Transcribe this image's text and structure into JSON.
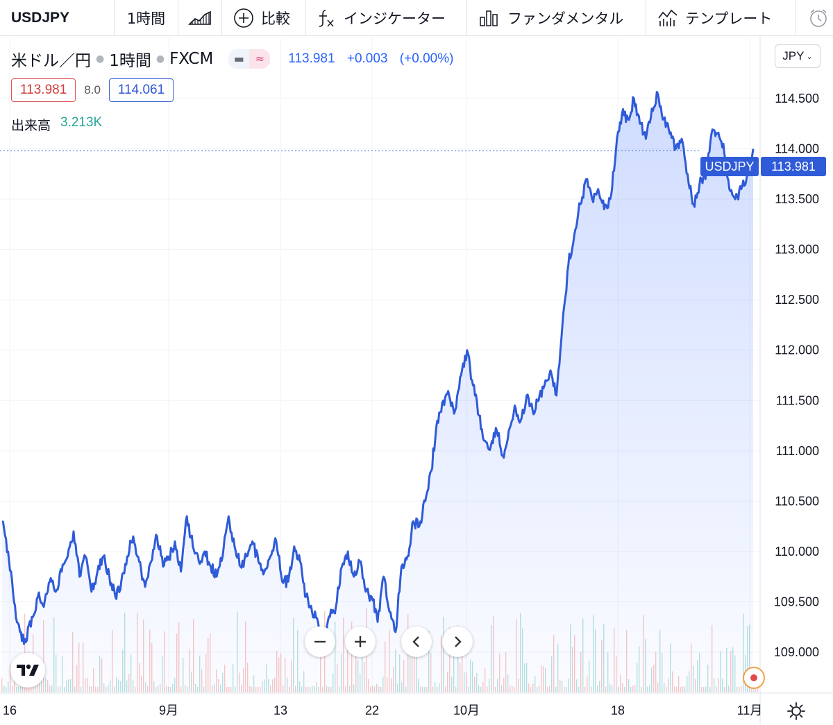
{
  "toolbar": {
    "symbol": "USDJPY",
    "interval": "1時間",
    "compare_label": "比較",
    "indicators_label": "インジケーター",
    "fundamentals_label": "ファンダメンタル",
    "templates_label": "テンプレート"
  },
  "legend": {
    "title": "米ドル／円",
    "interval": "1時間",
    "source": "FXCM",
    "price": "113.981",
    "change": "+0.003",
    "change_pct": "(+0.00%)",
    "bid": "113.981",
    "spread": "8.0",
    "ask": "114.061",
    "volume_label": "出来高",
    "volume_value": "3.213K"
  },
  "currency": "JPY",
  "price_tag": {
    "symbol": "USDJPY",
    "value": "113.981"
  },
  "colors": {
    "line": "#2f5bd8",
    "ask": "#2d57d4",
    "bid": "#d23b3b",
    "volume_up": "#26a69a",
    "volume_down": "#ef5350"
  },
  "chart_data": {
    "type": "area",
    "title": "米ドル／円",
    "x_tick_labels": [
      "16",
      "9月",
      "13",
      "22",
      "10月",
      "18",
      "11月"
    ],
    "y_tick_labels": [
      "109.000",
      "109.500",
      "110.000",
      "110.500",
      "111.000",
      "111.500",
      "112.000",
      "112.500",
      "113.000",
      "113.500",
      "114.000",
      "114.500"
    ],
    "ylim": [
      108.6,
      115.1
    ],
    "x_range": [
      "2021-08-16",
      "2021-11-01"
    ],
    "series": [
      {
        "values": [
          110.3,
          110.0,
          109.5,
          109.2,
          109.1,
          109.35,
          109.55,
          109.45,
          109.7,
          109.6,
          109.8,
          109.95,
          110.2,
          109.75,
          109.95,
          109.6,
          109.8,
          109.95,
          109.75,
          109.55,
          109.7,
          109.95,
          110.15,
          109.9,
          109.65,
          109.9,
          110.15,
          109.85,
          109.95,
          110.1,
          109.8,
          110.35,
          110.05,
          109.9,
          110.0,
          109.85,
          109.75,
          109.95,
          110.35,
          110.05,
          109.85,
          109.95,
          110.1,
          109.9,
          109.8,
          109.95,
          110.1,
          109.7,
          109.7,
          110.05,
          109.9,
          109.55,
          109.4,
          109.3,
          109.1,
          109.35,
          109.45,
          109.85,
          110.0,
          109.75,
          109.9,
          109.6,
          109.55,
          109.3,
          109.75,
          109.4,
          109.2,
          109.85,
          109.95,
          110.3,
          110.25,
          110.5,
          110.8,
          111.3,
          111.5,
          111.55,
          111.4,
          111.75,
          112.0,
          111.65,
          111.35,
          111.1,
          111.05,
          111.2,
          110.95,
          111.2,
          111.45,
          111.3,
          111.55,
          111.4,
          111.5,
          111.65,
          111.8,
          111.55,
          112.25,
          112.85,
          113.15,
          113.45,
          113.7,
          113.5,
          113.6,
          113.4,
          113.5,
          114.0,
          114.35,
          114.3,
          114.5,
          114.25,
          114.1,
          114.4,
          114.55,
          114.3,
          114.15,
          114.0,
          114.1,
          113.75,
          113.45,
          113.65,
          113.7,
          114.15,
          114.15,
          114.05,
          113.6,
          113.5,
          113.6,
          113.75,
          114.0
        ]
      }
    ],
    "last_value": 113.981,
    "grid": true
  }
}
